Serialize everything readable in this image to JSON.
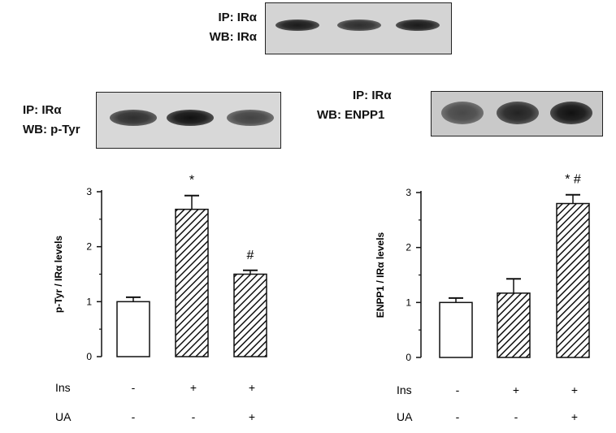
{
  "blots": {
    "top": {
      "ip": "IP: IRα",
      "wb": "WB: IRα",
      "lanes": [
        0.95,
        0.85,
        0.95
      ]
    },
    "left": {
      "ip": "IP: IRα",
      "wb": "WB: p-Tyr",
      "lanes": [
        0.85,
        1.0,
        0.75
      ]
    },
    "right": {
      "ip": "IP: IRα",
      "wb": "WB: ENPP1",
      "lanes": [
        0.7,
        0.9,
        1.0
      ]
    }
  },
  "chart_data": [
    {
      "type": "bar",
      "ylabel": "p-Tyr / IRα levels",
      "ylim": [
        0,
        3
      ],
      "yticks": [
        "0",
        "1",
        "2",
        "3"
      ],
      "values": [
        1.0,
        2.68,
        1.5
      ],
      "errors": [
        0.08,
        0.25,
        0.07
      ],
      "fills": [
        "white",
        "hatched",
        "hatched"
      ],
      "annotations": [
        "",
        "*",
        "#"
      ],
      "conditions": [
        {
          "name": "Ins",
          "values": [
            "-",
            "+",
            "+"
          ]
        },
        {
          "name": "UA",
          "values": [
            "-",
            "-",
            "+"
          ]
        }
      ]
    },
    {
      "type": "bar",
      "ylabel": "ENPP1 / IRα levels",
      "ylim": [
        0,
        3
      ],
      "yticks": [
        "0",
        "1",
        "2",
        "3"
      ],
      "values": [
        1.0,
        1.17,
        2.8
      ],
      "errors": [
        0.08,
        0.26,
        0.16
      ],
      "fills": [
        "white",
        "hatched",
        "hatched"
      ],
      "annotations": [
        "",
        "",
        "* #"
      ],
      "conditions": [
        {
          "name": "Ins",
          "values": [
            "-",
            "+",
            "+"
          ]
        },
        {
          "name": "UA",
          "values": [
            "-",
            "-",
            "+"
          ]
        }
      ]
    }
  ]
}
